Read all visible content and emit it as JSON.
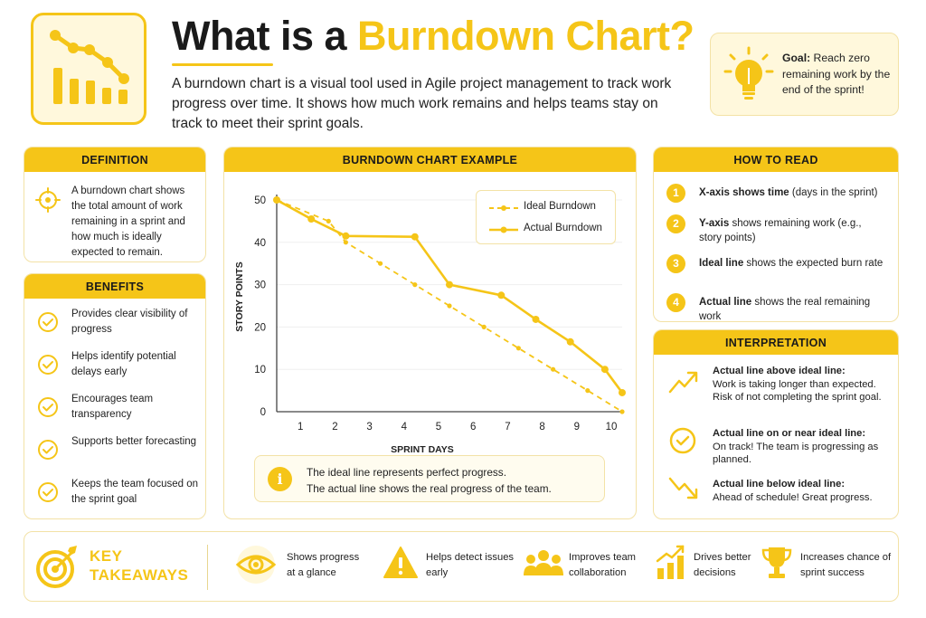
{
  "header": {
    "title_prefix": "What is a ",
    "title_highlight": "Burndown Chart?",
    "intro": "A burndown chart is a visual tool used in Agile project management to track work progress over time. It shows how much work remains and helps teams stay on track to meet their sprint goals."
  },
  "goal": {
    "label": "Goal:",
    "text": " Reach zero remaining work by the end of the sprint!"
  },
  "definition": {
    "heading": "DEFINITION",
    "text": "A burndown chart shows the total amount of work remaining in a sprint and how much is ideally expected to remain."
  },
  "benefits": {
    "heading": "BENEFITS",
    "items": [
      "Provides clear visibility of progress",
      "Helps identify potential delays early",
      "Encourages team transparency",
      "Supports better forecasting",
      "Keeps the team focused on the sprint goal"
    ]
  },
  "chart_section": {
    "heading": "BURNDOWN CHART EXAMPLE",
    "note_line1": "The ideal line represents perfect progress.",
    "note_line2": "The actual line shows the real progress of the team."
  },
  "chart_data": {
    "type": "line",
    "xlabel": "SPRINT DAYS",
    "ylabel": "STORY POINTS",
    "xlim": [
      0,
      10
    ],
    "ylim": [
      0,
      50
    ],
    "x_ticks": [
      1,
      2,
      3,
      4,
      5,
      6,
      7,
      8,
      9,
      10
    ],
    "y_ticks": [
      0,
      10,
      20,
      30,
      40,
      50
    ],
    "grid": true,
    "legend_position": "top-right",
    "series": [
      {
        "name": "Ideal Burndown",
        "style": "dashed",
        "color": "#F5C518",
        "x": [
          0,
          1.5,
          2,
          3,
          4,
          5,
          6,
          7,
          8,
          9,
          10
        ],
        "y": [
          50,
          45,
          40,
          35,
          30,
          25,
          20,
          15,
          10,
          5,
          0
        ]
      },
      {
        "name": "Actual Burndown",
        "style": "solid",
        "color": "#F5C518",
        "x": [
          0,
          1,
          2,
          4,
          5,
          6.5,
          7.5,
          8.5,
          9.5,
          10
        ],
        "y": [
          50,
          45.5,
          41.5,
          41.3,
          30,
          27.5,
          21.8,
          16.5,
          10,
          4.5
        ]
      }
    ]
  },
  "how_to_read": {
    "heading": "HOW TO READ",
    "items": [
      {
        "num": "1",
        "bold": "X-axis shows time",
        "rest": " (days in the sprint)"
      },
      {
        "num": "2",
        "bold": "Y-axis",
        "rest": " shows remaining work (e.g., story points)"
      },
      {
        "num": "3",
        "bold": "Ideal line",
        "rest": " shows the expected burn rate"
      },
      {
        "num": "4",
        "bold": "Actual line",
        "rest": " shows the real remaining work"
      }
    ]
  },
  "interpretation": {
    "heading": "INTERPRETATION",
    "items": [
      {
        "bold": "Actual line above ideal line:",
        "rest": "Work is taking longer than expected. Risk of not completing the sprint goal."
      },
      {
        "bold": "Actual line on or near ideal line:",
        "rest": "On track! The team is progressing as planned."
      },
      {
        "bold": "Actual line below ideal line:",
        "rest": "Ahead of schedule! Great progress."
      }
    ]
  },
  "takeaways": {
    "title_line1": "KEY",
    "title_line2": "TAKEAWAYS",
    "items": [
      {
        "line1": "Shows progress",
        "line2": "at a glance"
      },
      {
        "line1": "Helps detect issues",
        "line2": "early"
      },
      {
        "line1": "Improves team",
        "line2": "collaboration"
      },
      {
        "line1": "Drives better",
        "line2": "decisions"
      },
      {
        "line1": "Increases chance of",
        "line2": "sprint success"
      }
    ]
  },
  "colors": {
    "accent": "#F5C518",
    "accent_light": "#FFF8DC",
    "border": "#F3E2A6",
    "text": "#1a1a1a"
  }
}
